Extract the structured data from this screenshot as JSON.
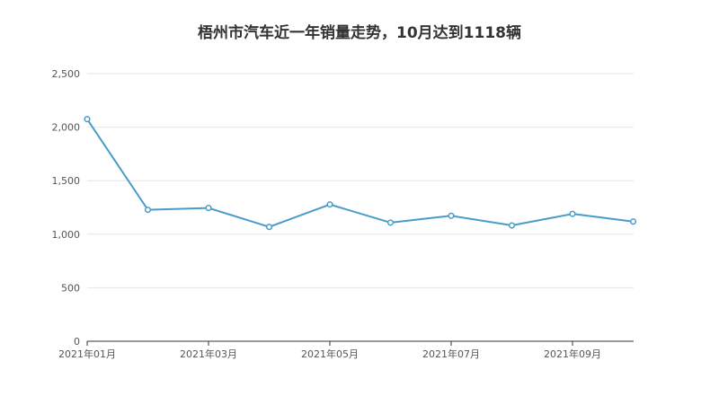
{
  "chart_data": {
    "type": "line",
    "title": "梧州市汽车近一年销量走势，10月达到1118辆",
    "xlabel": "",
    "ylabel": "",
    "x": [
      "2021年01月",
      "2021年02月",
      "2021年03月",
      "2021年04月",
      "2021年05月",
      "2021年06月",
      "2021年07月",
      "2021年08月",
      "2021年09月",
      "2021年10月"
    ],
    "x_tick_labels": [
      "2021年01月",
      "2021年03月",
      "2021年05月",
      "2021年07月",
      "2021年09月"
    ],
    "series": [
      {
        "values": [
          2075,
          1228,
          1245,
          1068,
          1278,
          1108,
          1172,
          1082,
          1190,
          1118
        ]
      }
    ],
    "ylim": [
      0,
      2500
    ],
    "y_ticks": [
      0,
      500,
      1000,
      1500,
      2000,
      2500
    ],
    "y_tick_labels": [
      "0",
      "500",
      "1,000",
      "1,500",
      "2,000",
      "2,500"
    ],
    "grid": true,
    "legend": "none",
    "colors": {
      "line": "#4a9bc9",
      "grid": "#e6e6e6",
      "axis": "#333333"
    }
  }
}
